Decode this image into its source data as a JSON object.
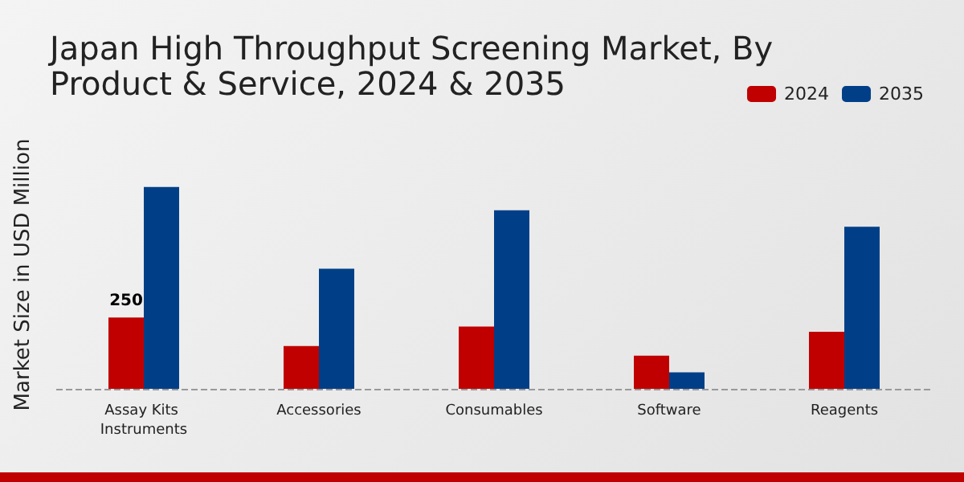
{
  "chart_data": {
    "type": "bar",
    "title": "Japan High Throughput Screening Market, By Product & Service, 2024 & 2035",
    "ylabel": "Market Size in USD Million",
    "categories": [
      "Assay Kits Instruments",
      "Accessories",
      "Consumables",
      "Software",
      "Reagents"
    ],
    "series": [
      {
        "name": "2024",
        "color": "#c00000",
        "values": [
          250,
          150,
          218,
          116,
          200
        ],
        "value_labels": [
          "250",
          null,
          null,
          null,
          null
        ]
      },
      {
        "name": "2035",
        "color": "#003f87",
        "values": [
          708,
          421,
          626,
          58,
          568
        ]
      }
    ],
    "ref_lines": [
      {
        "axis": "y",
        "value": 0,
        "line_style": "dashed",
        "color": "#999999"
      }
    ],
    "legend": "top right",
    "grid": false
  }
}
